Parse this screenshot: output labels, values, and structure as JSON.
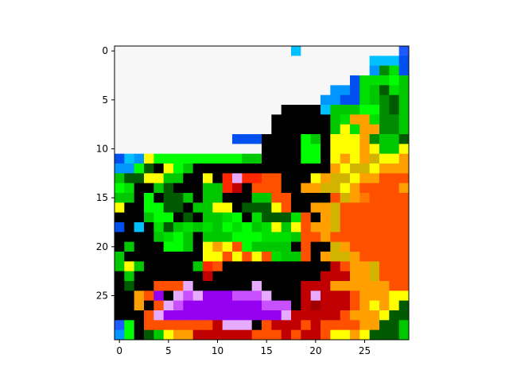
{
  "chart_data": {
    "type": "heatmap",
    "title": "",
    "xlabel": "",
    "ylabel": "",
    "rows": 30,
    "cols": 30,
    "xlim": [
      -0.5,
      29.5
    ],
    "ylim": [
      29.5,
      -0.5
    ],
    "x_ticks": [
      0,
      5,
      10,
      15,
      20,
      25
    ],
    "y_ticks": [
      0,
      5,
      10,
      15,
      20,
      25
    ],
    "x_tick_labels": [
      "0",
      "5",
      "10",
      "15",
      "20",
      "25"
    ],
    "y_tick_labels": [
      "0",
      "5",
      "10",
      "15",
      "20",
      "25"
    ],
    "grid": false,
    "legend": "none",
    "palette": {
      "W": "#f7f7f7",
      "K": "#000000",
      "B": "#1e5aff",
      "C": "#00c0ff",
      "A": "#0096ff",
      "N": "#0050f0",
      "G": "#00c800",
      "g": "#00e000",
      "L": "#00ff00",
      "D": "#005a00",
      "E": "#008c00",
      "Y": "#ffff00",
      "y": "#fff000",
      "O": "#ffa000",
      "o": "#ff7800",
      "R": "#ff5000",
      "r": "#ff2800",
      "M": "#c00000",
      "m": "#a00000",
      "T": "#d2b400",
      "P": "#9600f0",
      "p": "#c850ff",
      "V": "#e6aaff"
    },
    "grid_rows": [
      "WWWWWWWWWWWWWWWWWWCWWWWWWWWWWB",
      "WWWWWWWWWWWWWWWWWWWWWWWWWWCCCN",
      "WWWWWWWWWWWWWWWWWWWWWWWWWWAEgN",
      "WWWWWWWWWWWWWWWWWWWWWWWWNgggLG",
      "WWWWWWWWWWWWWWWWWWWWWWAANgGDgG",
      "WWWWWWWWWWWWWWWWWWWWWAANNgGEDG",
      "WWWWWWWWWWWWWWWWWKKKKCGGGLLEDG",
      "WWWWWWWWWWWWWWWWKKKKKKGgOOgEEG",
      "WWWWWWWWWWWWWWWWKKKKKKGYgOOEEG",
      "WWWWWWWWWWWWNNNKKKKLGKYYYOEGGD",
      "WWWWWWWWWWWWWWWKKKKLLKYYYOYGGY",
      "NCAYLLLLLLLLLGGKKKKLLKYOYOTYYO",
      "AALDKYLGKKKKKKKKKKKKKKOYTTYOOO",
      "GDDYYGGKKYKrVrrRRKKKYOTTYOORRR",
      "LgKKGDKKKGGrMKRRRKKOOTTYORRRRO",
      "GGKLKDDGKGGKKKGGRRKKKKRTOoRRRR",
      "YKKLLDDKGGYYKDDDYRKKOOTRRRRRRR",
      "KKKGLLKDKGGgLKgDDDgRKOTRRRRRRR",
      "NKCKgDGgGgGLgLGgYGYROOTRRRRRRR",
      "KKKKGgLGKGGGLLLgggGRRORRRRRRRR",
      "KGKKKLLGKYOYRLGGGGKRKKTORRRRRR",
      "GKKKKKKKKYYRYRYRgGGRKOTTORRRRR",
      "GYGKKKKKGrRKKKKKKKKKKKMROOTRRR",
      "KGKKKKKKKMKKKKKKKKKKKMMMOOTRRR",
      "KDKKRRRVKKKKKKVKKKKMMMOOOOOORR",
      "KKORPKVpVPPPpppVKKKMVMMMROOOYY",
      "KKOKRVpPPPPPPPPpppKMmMMMROYOYD",
      "KKKRVPPPPPPPPPPPPVMMMMMROOOYDD",
      "BLKRRRRRRRMVVVKRMMMRMRRRROODDG",
      "ALKDGYOOMMMMMMRRRMRMMRYYOYDDDG"
    ]
  }
}
